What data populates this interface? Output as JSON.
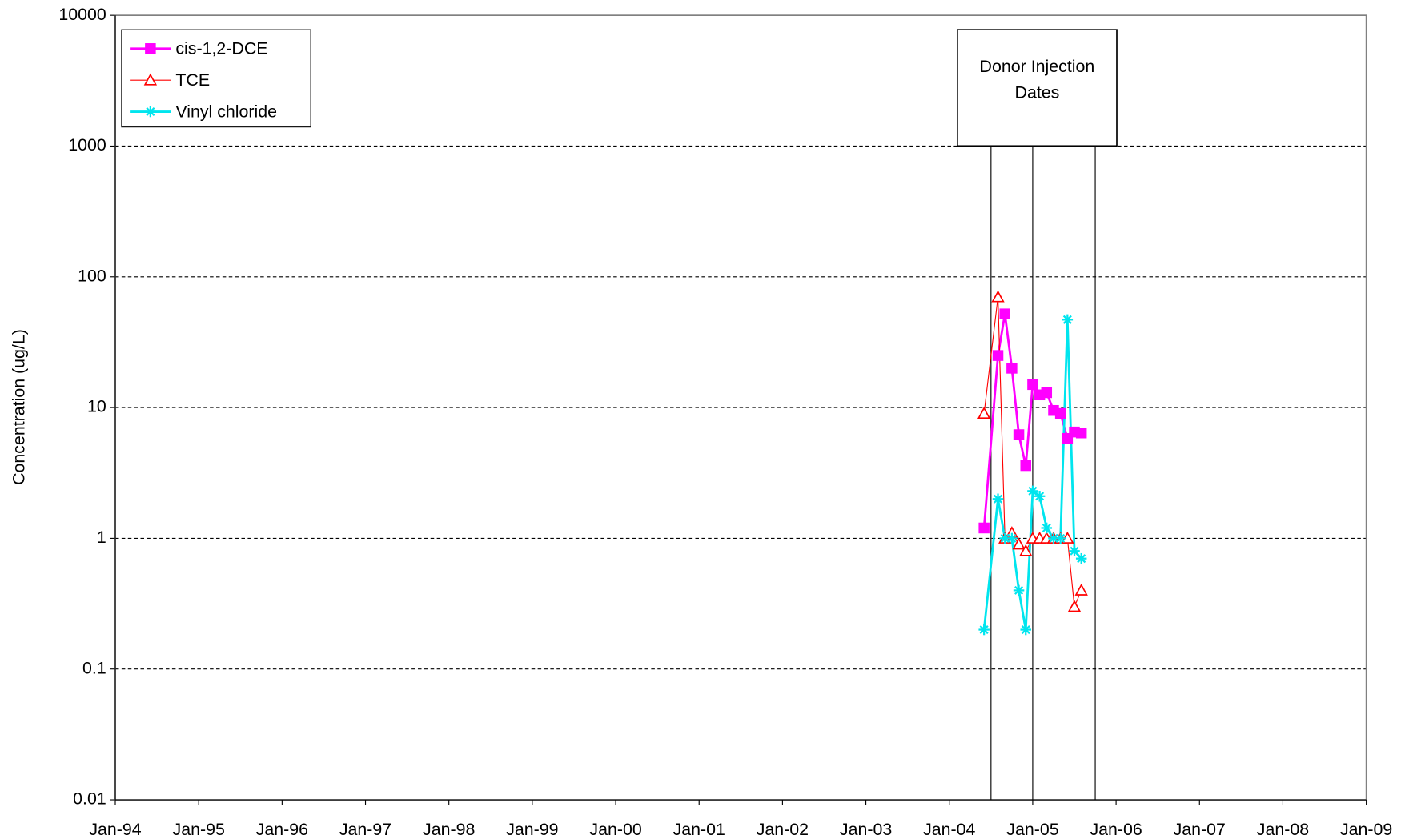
{
  "chart_data": {
    "type": "line",
    "y_label": "Concentration (ug/L)",
    "annotation": "Donor Injection Dates",
    "injection_dates": [
      "2004-07",
      "2005-01",
      "2005-10"
    ],
    "x": [
      "2004-06",
      "2004-08",
      "2004-09",
      "2004-10",
      "2004-11",
      "2004-12",
      "2005-01",
      "2005-02",
      "2005-03",
      "2005-04",
      "2005-05",
      "2005-06",
      "2005-07",
      "2005-08"
    ],
    "series": [
      {
        "name": "cis-1,2-DCE",
        "color": "#ff00ff",
        "marker": "square",
        "values": [
          1.2,
          25,
          52,
          20,
          6.2,
          3.6,
          15,
          12.5,
          13,
          9.5,
          9,
          5.8,
          6.5,
          6.4
        ]
      },
      {
        "name": "TCE",
        "color": "#ff0000",
        "marker": "triangle",
        "values": [
          9,
          70,
          1,
          1.1,
          0.9,
          0.8,
          1,
          1,
          1,
          1,
          1,
          1,
          0.3,
          0.4
        ]
      },
      {
        "name": "Vinyl chloride",
        "color": "#00e5ee",
        "marker": "asterisk",
        "values": [
          0.2,
          2,
          1,
          1,
          0.4,
          0.2,
          2.3,
          2.1,
          1.2,
          1,
          1,
          47,
          0.8,
          0.7
        ]
      }
    ],
    "xlim": [
      "1994-01",
      "2009-01"
    ],
    "xticks": [
      {
        "value": "1994-01",
        "label": "Jan-94"
      },
      {
        "value": "1995-01",
        "label": "Jan-95"
      },
      {
        "value": "1996-01",
        "label": "Jan-96"
      },
      {
        "value": "1997-01",
        "label": "Jan-97"
      },
      {
        "value": "1998-01",
        "label": "Jan-98"
      },
      {
        "value": "1999-01",
        "label": "Jan-99"
      },
      {
        "value": "2000-01",
        "label": "Jan-00"
      },
      {
        "value": "2001-01",
        "label": "Jan-01"
      },
      {
        "value": "2002-01",
        "label": "Jan-02"
      },
      {
        "value": "2003-01",
        "label": "Jan-03"
      },
      {
        "value": "2004-01",
        "label": "Jan-04"
      },
      {
        "value": "2005-01",
        "label": "Jan-05"
      },
      {
        "value": "2006-01",
        "label": "Jan-06"
      },
      {
        "value": "2007-01",
        "label": "Jan-07"
      },
      {
        "value": "2008-01",
        "label": "Jan-08"
      },
      {
        "value": "2009-01",
        "label": "Jan-09"
      }
    ],
    "ylim": [
      0.01,
      10000
    ],
    "yticks": [
      0.01,
      0.1,
      1,
      10,
      100,
      1000,
      10000
    ],
    "log_y": true,
    "grid": true,
    "legend": "upper left"
  }
}
